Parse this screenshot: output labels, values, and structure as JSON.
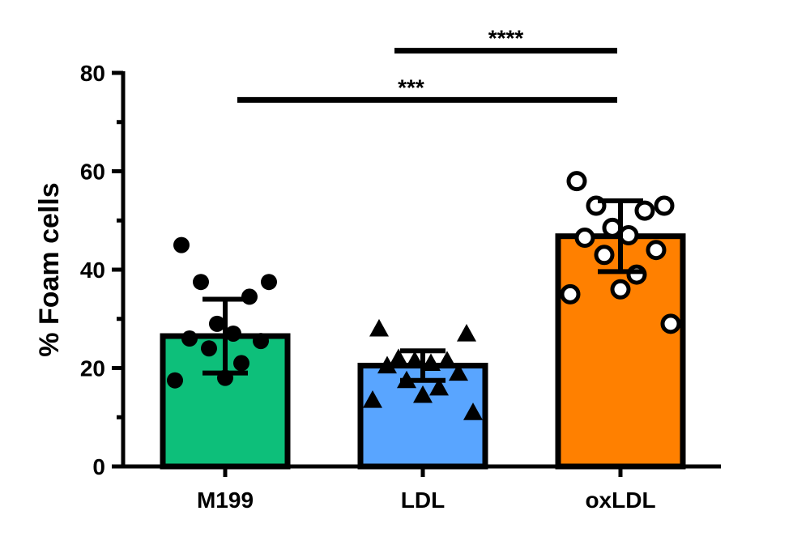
{
  "chart_data": {
    "type": "bar",
    "ylabel": "% Foam cells",
    "ylim": [
      0,
      80
    ],
    "yticks": [
      0,
      20,
      40,
      60,
      80
    ],
    "categories": [
      "M199",
      "LDL",
      "oxLDL"
    ],
    "bar_colors": [
      "#0dbf7a",
      "#59a5ff",
      "#ff8000"
    ],
    "point_markers": [
      "filled-circle",
      "filled-triangle",
      "open-circle"
    ],
    "means": [
      26.5,
      20.5,
      46.8
    ],
    "sd": [
      7.5,
      3.0,
      7.2
    ],
    "points": [
      [
        45,
        37.5,
        37.5,
        34.5,
        29,
        27,
        26,
        25.5,
        24,
        21,
        18,
        17.5
      ],
      [
        28,
        27,
        22,
        21.5,
        21.5,
        21,
        20.5,
        19,
        17.5,
        16,
        14.5,
        13.5,
        11
      ],
      [
        58,
        53,
        53,
        52,
        48.5,
        47,
        46.5,
        44,
        43,
        39,
        36,
        35,
        29
      ]
    ],
    "significance": [
      {
        "from": 1,
        "to": 2,
        "y": 84.5,
        "label": "****"
      },
      {
        "from": 0,
        "to": 2,
        "y": 74.5,
        "label": "***"
      }
    ],
    "grid": false,
    "legend": "none"
  }
}
